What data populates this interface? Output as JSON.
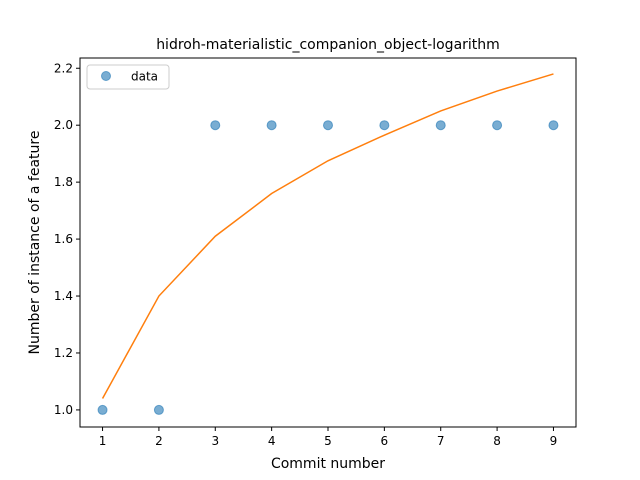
{
  "chart_data": {
    "type": "scatter",
    "title": "hidroh-materialistic_companion_object-logarithm",
    "xlabel": "Commit number",
    "ylabel": "Number of instance of a feature",
    "xlim": [
      0.6,
      9.4
    ],
    "ylim": [
      0.94,
      2.236
    ],
    "x_ticks": [
      1,
      2,
      3,
      4,
      5,
      6,
      7,
      8,
      9
    ],
    "y_ticks": [
      1.0,
      1.2,
      1.4,
      1.6,
      1.8,
      2.0,
      2.2
    ],
    "y_tick_labels": [
      "1.0",
      "1.2",
      "1.4",
      "1.6",
      "1.8",
      "2.0",
      "2.2"
    ],
    "grid": false,
    "legend": {
      "position": "top-left",
      "entries": [
        "data"
      ]
    },
    "series": [
      {
        "name": "data",
        "kind": "scatter",
        "color": "#1f77b4",
        "x": [
          1,
          2,
          3,
          4,
          5,
          6,
          7,
          8,
          9
        ],
        "y": [
          1,
          1,
          2,
          2,
          2,
          2,
          2,
          2,
          2
        ]
      },
      {
        "kind": "line",
        "color": "#ff7f0e",
        "x": [
          1,
          2,
          3,
          4,
          5,
          6,
          7,
          8,
          9
        ],
        "y": [
          1.04,
          1.4,
          1.61,
          1.76,
          1.875,
          1.965,
          2.05,
          2.12,
          2.18
        ]
      }
    ]
  }
}
